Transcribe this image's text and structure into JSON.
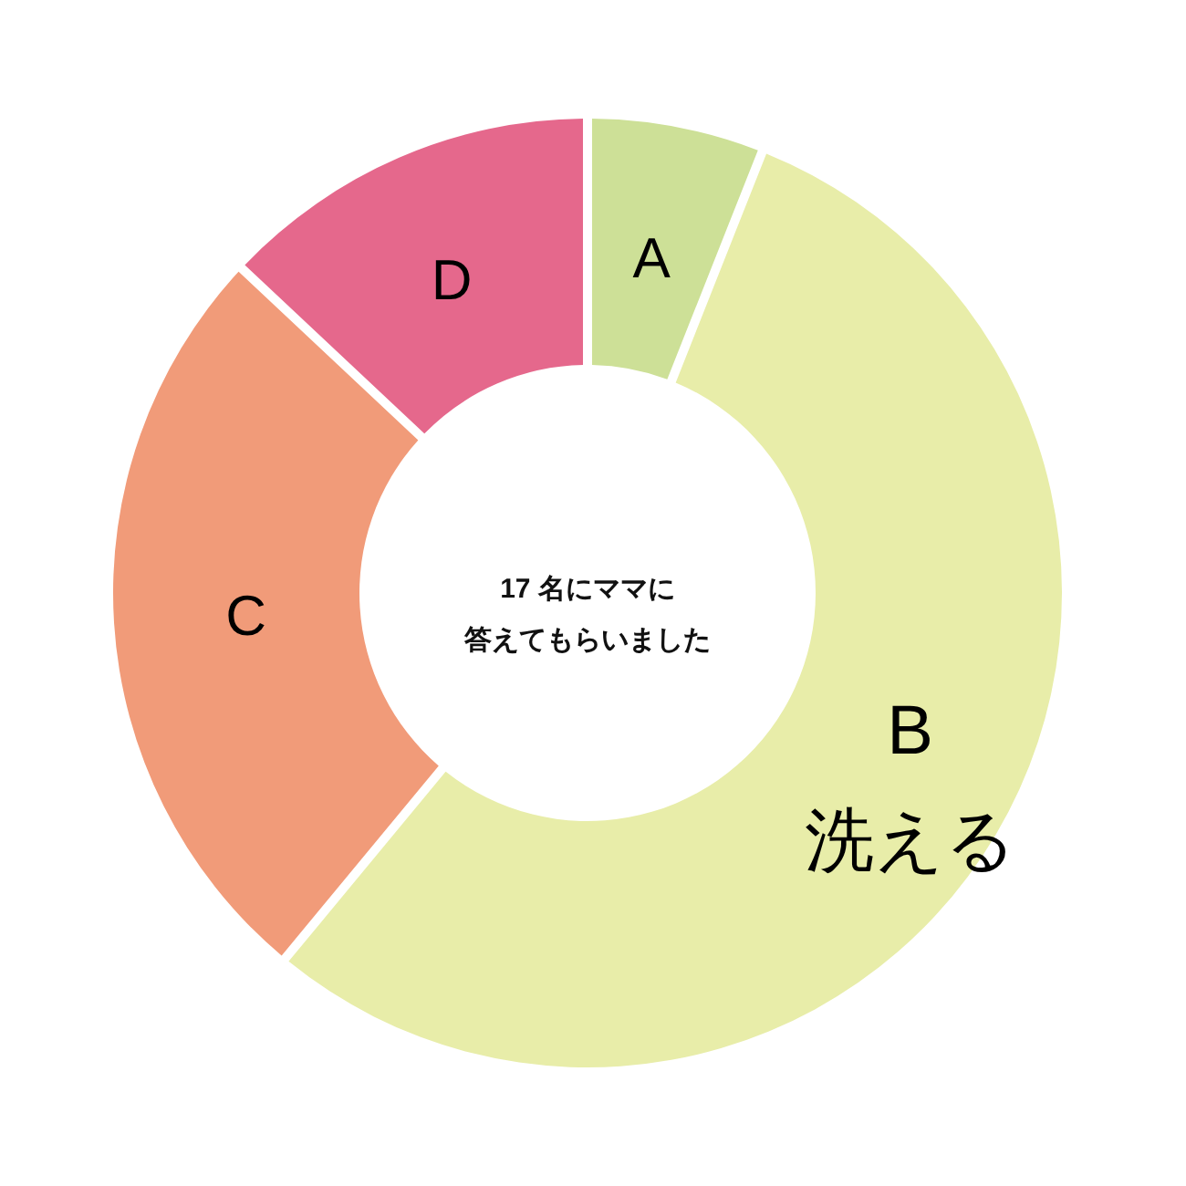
{
  "chart_data": {
    "type": "donut",
    "categories": [
      "A",
      "B\n洗える",
      "C",
      "D"
    ],
    "values": [
      6,
      55,
      26,
      13
    ],
    "colors": [
      "#cde097",
      "#e8eda9",
      "#f19b79",
      "#e5688c"
    ],
    "annotations": [
      "17 名にママに",
      "答えてもらいました"
    ]
  }
}
